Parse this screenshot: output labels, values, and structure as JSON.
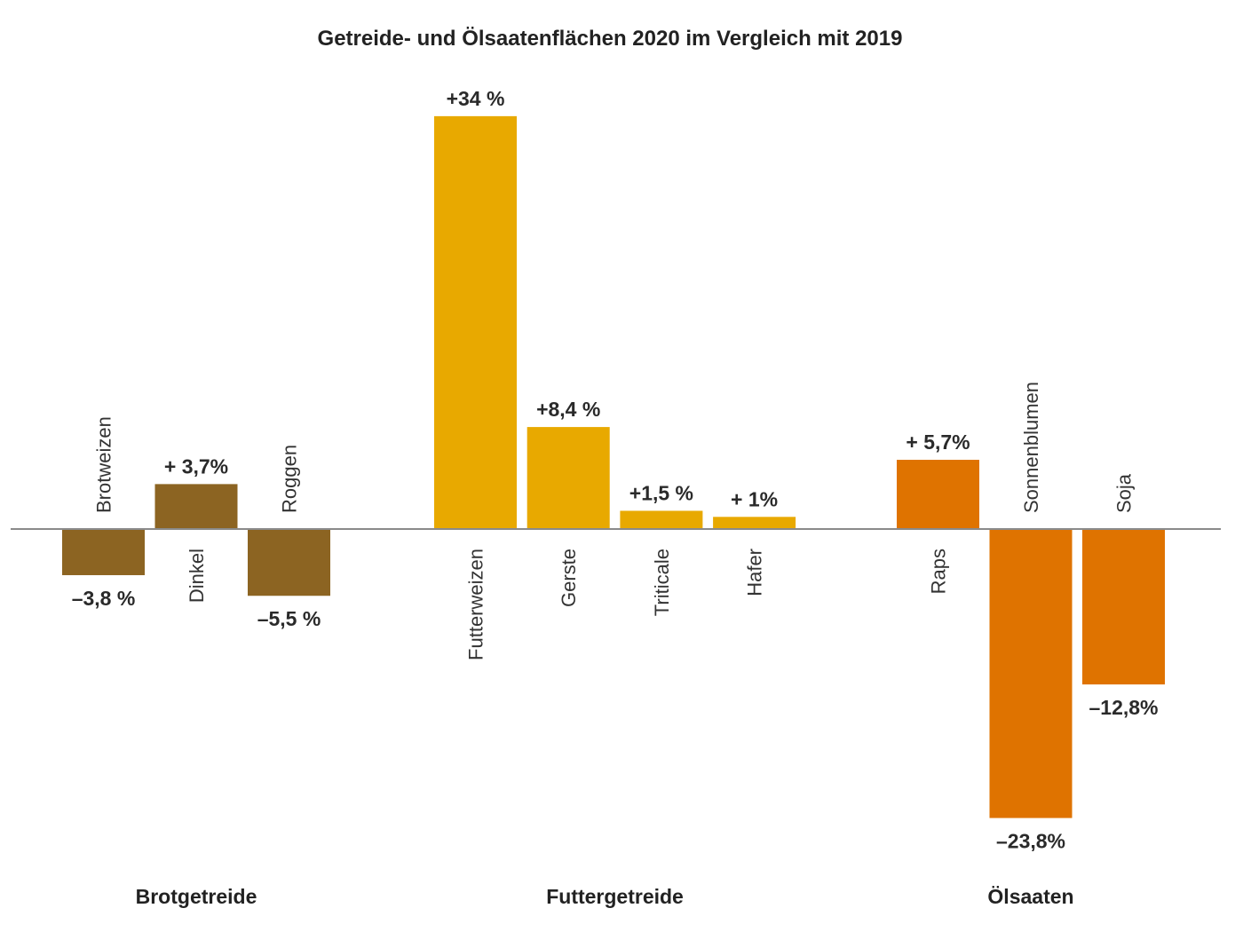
{
  "chart_data": {
    "type": "bar",
    "title": "Getreide- und Ölsaatenflächen 2020 im Vergleich mit 2019",
    "xlabel": "",
    "ylabel": "",
    "ylim": [
      -26,
      37
    ],
    "grid": false,
    "legend": "none",
    "groups": [
      {
        "name": "Brotgetreide",
        "color": "#8C6422",
        "categories": [
          "Brotweizen",
          "Dinkel",
          "Roggen"
        ],
        "values": [
          -3.8,
          3.7,
          -5.5
        ],
        "labels": [
          "–3,8 %",
          "+ 3,7%",
          "–5,5 %"
        ]
      },
      {
        "name": "Futtergetreide",
        "color": "#E8A900",
        "categories": [
          "Futterweizen",
          "Gerste",
          "Triticale",
          "Hafer"
        ],
        "values": [
          34,
          8.4,
          1.5,
          1
        ],
        "labels": [
          "+34 %",
          "+8,4 %",
          "+1,5 %",
          "+ 1%"
        ]
      },
      {
        "name": "Ölsaaten",
        "color": "#DF7300",
        "categories": [
          "Raps",
          "Sonnenblumen",
          "Soja"
        ],
        "values": [
          5.7,
          -23.8,
          -12.8
        ],
        "labels": [
          "+ 5,7%",
          "–23,8%",
          "–12,8%"
        ]
      }
    ]
  }
}
